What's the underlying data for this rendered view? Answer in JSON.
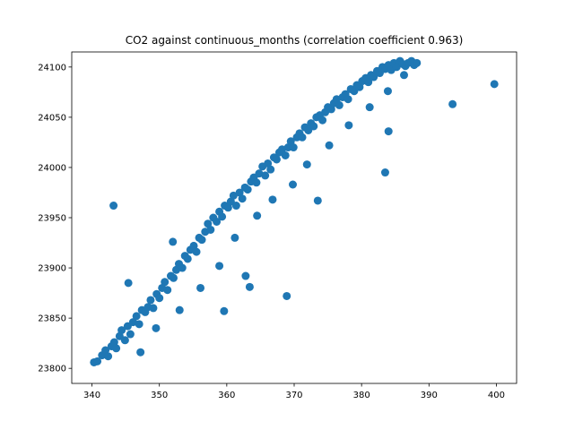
{
  "chart_data": {
    "type": "scatter",
    "title": "CO2 against continuous_months (correlation coefficient 0.963)",
    "xlabel": "",
    "ylabel": "",
    "xlim": [
      337,
      403
    ],
    "ylim": [
      23785,
      24115
    ],
    "xticks": [
      340,
      350,
      360,
      370,
      380,
      390,
      400
    ],
    "yticks": [
      23800,
      23850,
      23900,
      23950,
      24000,
      24050,
      24100
    ],
    "xtick_labels": [
      "340",
      "350",
      "360",
      "370",
      "380",
      "390",
      "400"
    ],
    "ytick_labels": [
      "23800",
      "23850",
      "23900",
      "23950",
      "24000",
      "24050",
      "24100"
    ],
    "grid": false,
    "marker_color": "#1f77b4",
    "series": [
      {
        "x": [
          340.3,
          340.8,
          341.5,
          342.0,
          342.4,
          342.9,
          343.3,
          343.6,
          344.1,
          344.4,
          344.9,
          345.3,
          345.7,
          346.1,
          346.6,
          347.0,
          347.4,
          347.9,
          348.3,
          348.7,
          349.1,
          349.6,
          350.0,
          350.4,
          350.8,
          351.2,
          351.7,
          352.1,
          352.5,
          352.9,
          353.4,
          353.8,
          354.2,
          354.6,
          355.1,
          355.5,
          355.9,
          356.3,
          356.8,
          357.2,
          357.6,
          358.0,
          358.5,
          358.9,
          359.3,
          359.7,
          360.2,
          360.6,
          361.0,
          361.4,
          361.9,
          362.3,
          362.7,
          363.1,
          363.6,
          364.0,
          364.4,
          364.8,
          365.3,
          365.7,
          366.1,
          366.5,
          367.0,
          367.4,
          367.8,
          368.2,
          368.7,
          369.1,
          369.5,
          369.9,
          370.4,
          370.8,
          371.2,
          371.6,
          372.1,
          372.5,
          372.9,
          373.3,
          373.8,
          374.2,
          374.6,
          375.0,
          375.5,
          375.9,
          376.3,
          376.7,
          377.2,
          377.6,
          378.0,
          378.4,
          378.9,
          379.3,
          379.7,
          380.1,
          380.6,
          381.0,
          381.4,
          381.8,
          382.3,
          382.7,
          383.1,
          383.5,
          384.0,
          384.4,
          384.8,
          385.2,
          385.7,
          386.1,
          386.5,
          386.9,
          387.4,
          387.8,
          388.2,
          343.2,
          345.4,
          352.0,
          363.4,
          368.9,
          373.5,
          359.6,
          362.8,
          383.5,
          384.0,
          393.5,
          399.7,
          347.2,
          349.5,
          353.0,
          356.1,
          358.9,
          361.2,
          364.5,
          366.8,
          369.8,
          371.9,
          375.2,
          378.1,
          381.2,
          383.9,
          386.3
        ],
        "y": [
          23806,
          23807,
          23813,
          23818,
          23812,
          23822,
          23826,
          23820,
          23832,
          23838,
          23828,
          23842,
          23834,
          23846,
          23852,
          23844,
          23858,
          23856,
          23861,
          23868,
          23860,
          23874,
          23870,
          23880,
          23886,
          23878,
          23892,
          23890,
          23898,
          23904,
          23900,
          23912,
          23909,
          23918,
          23922,
          23916,
          23930,
          23928,
          23936,
          23944,
          23938,
          23950,
          23946,
          23956,
          23951,
          23962,
          23960,
          23966,
          23972,
          23962,
          23975,
          23969,
          23980,
          23978,
          23986,
          23990,
          23985,
          23994,
          24001,
          23992,
          24004,
          23998,
          24010,
          24008,
          24015,
          24018,
          24012,
          24020,
          24026,
          24020,
          24030,
          24034,
          24030,
          24040,
          24037,
          24044,
          24041,
          24050,
          24052,
          24047,
          24055,
          24060,
          24058,
          24064,
          24068,
          24062,
          24070,
          24073,
          24068,
          24078,
          24076,
          24082,
          24080,
          24086,
          24089,
          24085,
          24092,
          24090,
          24096,
          24094,
          24100,
          24098,
          24102,
          24097,
          24104,
          24100,
          24106,
          24103,
          24101,
          24104,
          24106,
          24102,
          24104,
          23962,
          23885,
          23926,
          23881,
          23872,
          23967,
          23857,
          23892,
          23995,
          24036,
          24063,
          24083,
          23816,
          23840,
          23858,
          23880,
          23902,
          23930,
          23952,
          23968,
          23983,
          24003,
          24022,
          24042,
          24060,
          24076,
          24092
        ]
      }
    ]
  }
}
